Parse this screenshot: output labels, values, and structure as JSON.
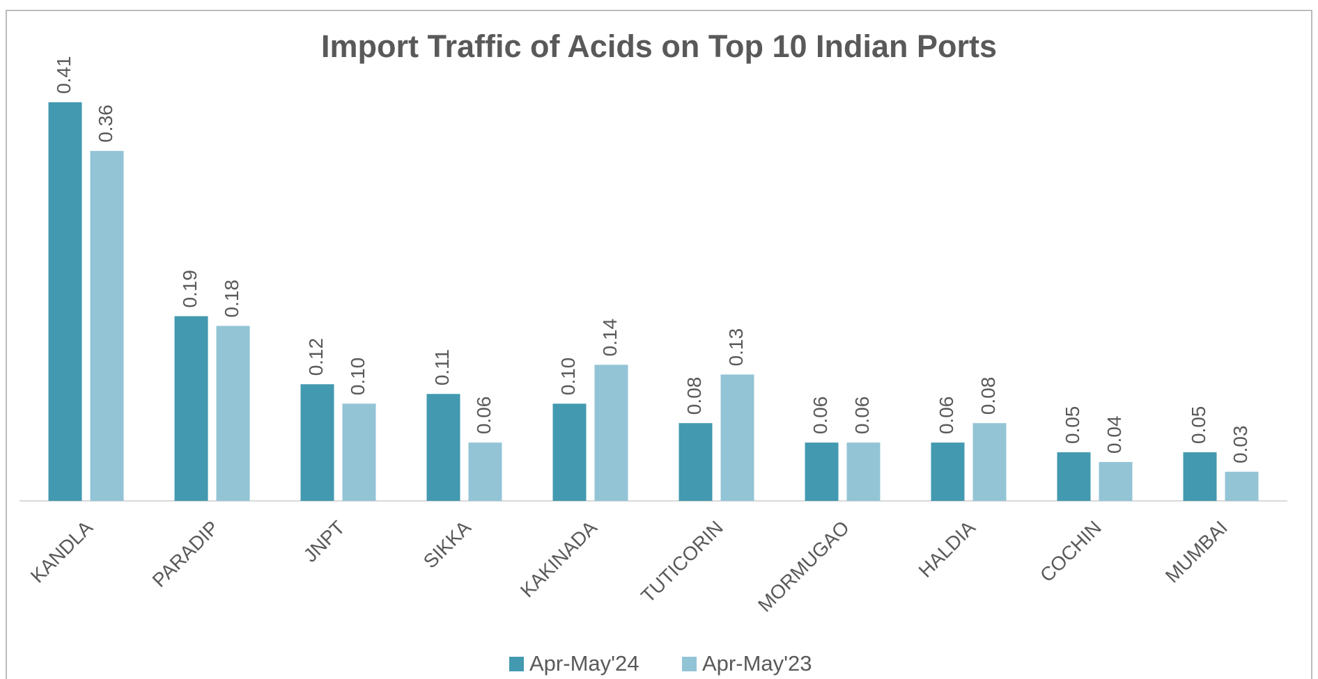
{
  "chart_data": {
    "type": "bar",
    "title": "Import Traffic of Acids on Top 10 Indian Ports",
    "categories": [
      "KANDLA",
      "PARADIP",
      "JNPT",
      "SIKKA",
      "KAKINADA",
      "TUTICORIN",
      "MORMUGAO",
      "HALDIA",
      "COCHIN",
      "MUMBAI"
    ],
    "series": [
      {
        "name": "Apr-May'24",
        "color": "#4399b0",
        "values": [
          0.41,
          0.19,
          0.12,
          0.11,
          0.1,
          0.08,
          0.06,
          0.06,
          0.05,
          0.05
        ],
        "value_labels": [
          "0.41",
          "0.19",
          "0.12",
          "0.11",
          "0.10",
          "0.08",
          "0.06",
          "0.06",
          "0.05",
          "0.05"
        ]
      },
      {
        "name": "Apr-May'23",
        "color": "#93c4d6",
        "values": [
          0.36,
          0.18,
          0.1,
          0.06,
          0.14,
          0.13,
          0.06,
          0.08,
          0.04,
          0.03
        ],
        "value_labels": [
          "0.36",
          "0.18",
          "0.10",
          "0.06",
          "0.14",
          "0.13",
          "0.06",
          "0.08",
          "0.04",
          "0.03"
        ]
      }
    ]
  }
}
